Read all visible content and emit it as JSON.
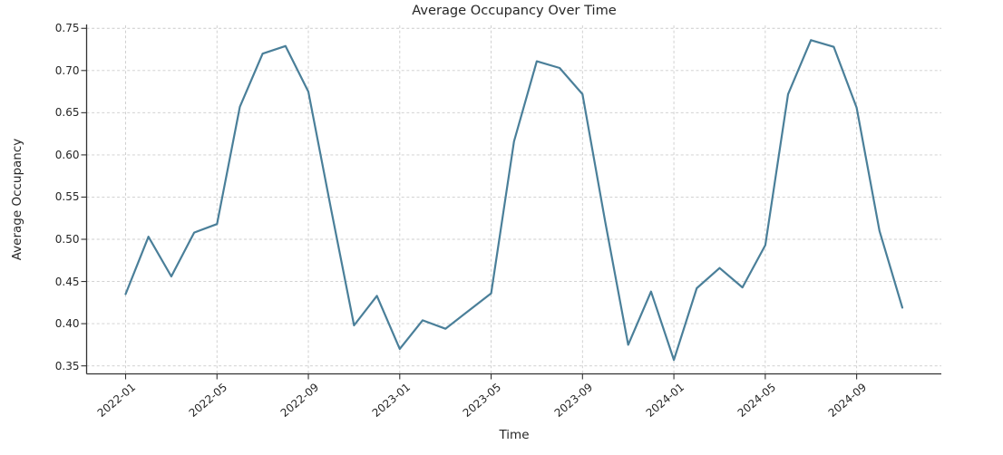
{
  "chart_data": {
    "type": "line",
    "title": "Average Occupancy Over Time",
    "xlabel": "Time",
    "ylabel": "Average Occupancy",
    "series_name": "Average Occupancy",
    "categories": [
      "2022-01",
      "2022-02",
      "2022-03",
      "2022-04",
      "2022-05",
      "2022-06",
      "2022-07",
      "2022-08",
      "2022-09",
      "2022-10",
      "2022-11",
      "2022-12",
      "2023-01",
      "2023-02",
      "2023-03",
      "2023-04",
      "2023-05",
      "2023-06",
      "2023-07",
      "2023-08",
      "2023-09",
      "2023-10",
      "2023-11",
      "2023-12",
      "2024-01",
      "2024-02",
      "2024-03",
      "2024-04",
      "2024-05",
      "2024-06",
      "2024-07",
      "2024-08",
      "2024-09",
      "2024-10",
      "2024-11"
    ],
    "values": [
      0.435,
      0.503,
      0.456,
      0.508,
      0.518,
      0.657,
      0.72,
      0.729,
      0.675,
      0.535,
      0.398,
      0.433,
      0.37,
      0.404,
      0.394,
      0.415,
      0.436,
      0.616,
      0.711,
      0.703,
      0.672,
      0.52,
      0.375,
      0.438,
      0.357,
      0.442,
      0.466,
      0.443,
      0.493,
      0.672,
      0.736,
      0.728,
      0.656,
      0.51,
      0.419
    ],
    "xtick_labels": [
      "2022-01",
      "2022-05",
      "2022-09",
      "2023-01",
      "2023-05",
      "2023-09",
      "2024-01",
      "2024-05",
      "2024-09"
    ],
    "ytick_values": [
      0.35,
      0.4,
      0.45,
      0.5,
      0.55,
      0.6,
      0.65,
      0.7,
      0.75
    ],
    "ytick_labels": [
      "0.35",
      "0.40",
      "0.45",
      "0.50",
      "0.55",
      "0.60",
      "0.65",
      "0.70",
      "0.75"
    ],
    "ylim": [
      0.3405,
      0.7535
    ],
    "grid": true,
    "grid_style": "dashed",
    "legend": "none",
    "line_color": "#4a7f99",
    "grid_color": "#cccccc",
    "axis_color": "#333333",
    "text_color": "#262626",
    "background": "#ffffff"
  }
}
